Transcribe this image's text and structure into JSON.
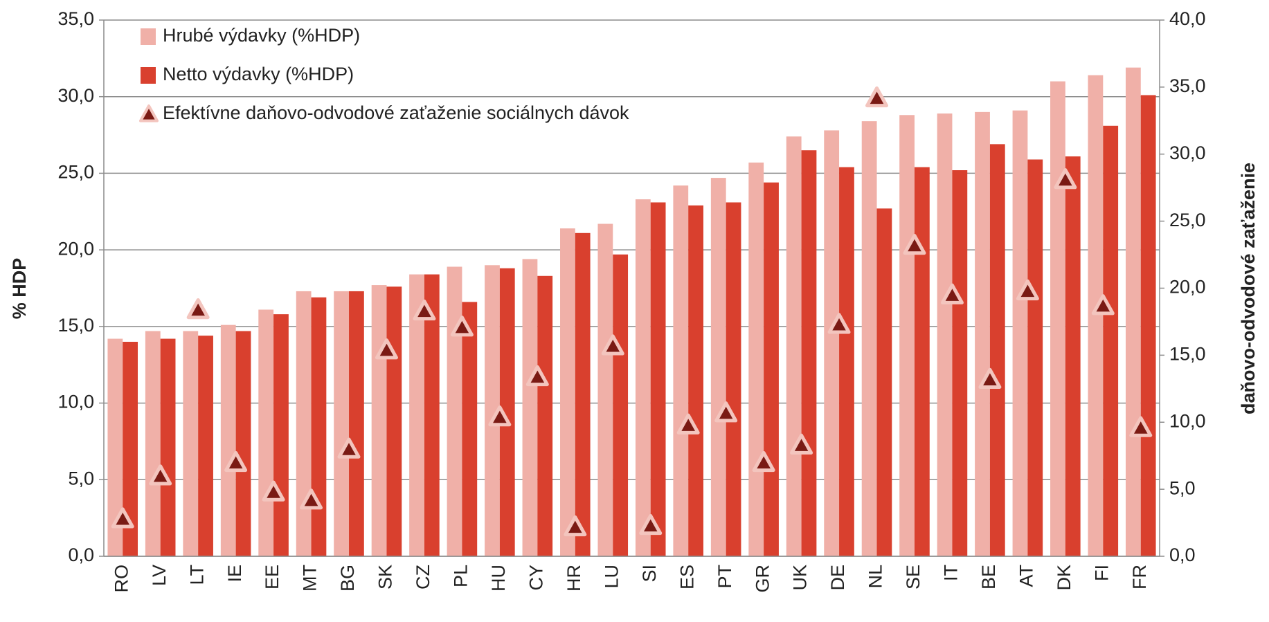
{
  "chart_data": {
    "type": "bar",
    "y_label": "% HDP",
    "y2_label": "daňovo-odvodové zaťaženie",
    "categories": [
      "RO",
      "LV",
      "LT",
      "IE",
      "EE",
      "MT",
      "BG",
      "SK",
      "CZ",
      "PL",
      "HU",
      "CY",
      "HR",
      "LU",
      "SI",
      "ES",
      "PT",
      "GR",
      "UK",
      "DE",
      "NL",
      "SE",
      "IT",
      "BE",
      "AT",
      "DK",
      "FI",
      "FR"
    ],
    "series": [
      {
        "name": "Hrubé výdavky (%HDP)",
        "color": "#f0b0a8",
        "type": "bar",
        "values": [
          14.2,
          14.7,
          14.7,
          15.1,
          16.1,
          17.3,
          17.3,
          17.7,
          18.4,
          18.9,
          19.0,
          19.4,
          21.4,
          21.7,
          23.3,
          24.2,
          24.7,
          25.7,
          27.4,
          27.8,
          28.4,
          28.8,
          28.9,
          29.0,
          29.1,
          31.0,
          31.4,
          31.9
        ]
      },
      {
        "name": "Netto výdavky (%HDP)",
        "color": "#d9402e",
        "type": "bar",
        "values": [
          14.0,
          14.2,
          14.4,
          14.7,
          15.8,
          16.9,
          17.3,
          17.6,
          18.4,
          16.6,
          18.8,
          18.3,
          21.1,
          19.7,
          23.1,
          22.9,
          23.1,
          24.4,
          26.5,
          25.4,
          22.7,
          25.4,
          25.2,
          26.9,
          25.9,
          26.1,
          28.1,
          30.1
        ]
      },
      {
        "name": "Efektívne daňovo-odvodové zaťaženie sociálnych dávok",
        "color": "#7a1a14",
        "type": "scatter",
        "axis": "y2",
        "values": [
          2.8,
          6.0,
          18.4,
          7.0,
          4.8,
          4.2,
          8.0,
          15.4,
          18.3,
          17.1,
          10.4,
          13.4,
          2.2,
          15.7,
          2.3,
          9.8,
          10.7,
          7.0,
          8.3,
          17.3,
          34.2,
          23.2,
          19.5,
          13.2,
          19.8,
          28.1,
          18.7,
          9.6
        ]
      }
    ],
    "ylim": [
      0,
      35
    ],
    "yticks": [
      {
        "value": 0,
        "label": "0,0"
      },
      {
        "value": 5,
        "label": "5,0"
      },
      {
        "value": 10,
        "label": "10,0"
      },
      {
        "value": 15,
        "label": "15,0"
      },
      {
        "value": 20,
        "label": "20,0"
      },
      {
        "value": 25,
        "label": "25,0"
      },
      {
        "value": 30,
        "label": "30,0"
      },
      {
        "value": 35,
        "label": "35,0"
      }
    ],
    "y2lim": [
      0,
      40
    ],
    "y2ticks": [
      {
        "value": 0,
        "label": "0,0"
      },
      {
        "value": 5,
        "label": "5,0"
      },
      {
        "value": 10,
        "label": "10,0"
      },
      {
        "value": 15,
        "label": "15,0"
      },
      {
        "value": 20,
        "label": "20,0"
      },
      {
        "value": 25,
        "label": "25,0"
      },
      {
        "value": 30,
        "label": "30,0"
      },
      {
        "value": 35,
        "label": "35,0"
      },
      {
        "value": 40,
        "label": "40,0"
      }
    ],
    "grid": true,
    "legend": "top-left"
  }
}
